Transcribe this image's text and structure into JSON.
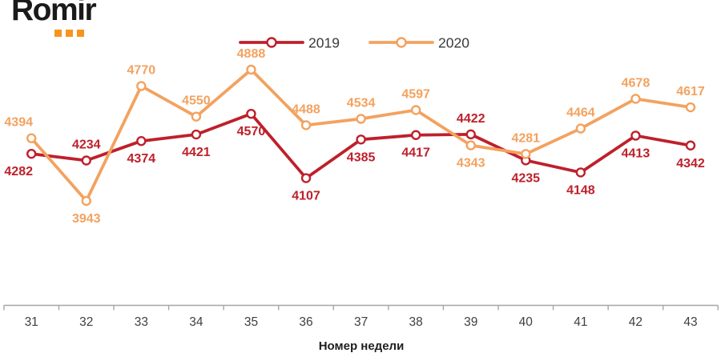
{
  "logo": {
    "text": "Romir"
  },
  "colors": {
    "series_2019": "#BE202B",
    "series_2020": "#F3A25F",
    "logo_dots": "#F7941D",
    "axis": "#A6A6A6",
    "text": "#3F3F3F",
    "legend_text": "#3A3A3A"
  },
  "chart_data": {
    "type": "line",
    "x": [
      31,
      32,
      33,
      34,
      35,
      36,
      37,
      38,
      39,
      40,
      41,
      42,
      43
    ],
    "xlabel": "Номер недели",
    "ylim": [
      3900,
      4950
    ],
    "grid": false,
    "legend_position": "top-center",
    "marker": "open-circle",
    "series": [
      {
        "name": "2019",
        "color": "#BE202B",
        "values": [
          4282,
          4234,
          4374,
          4421,
          4570,
          4107,
          4385,
          4417,
          4422,
          4235,
          4148,
          4413,
          4342
        ],
        "label_side": [
          "below",
          "above",
          "below",
          "below",
          "below",
          "below",
          "below",
          "below",
          "above",
          "below",
          "below",
          "below",
          "below"
        ]
      },
      {
        "name": "2020",
        "color": "#F3A25F",
        "values": [
          4394,
          3943,
          4770,
          4550,
          4888,
          4488,
          4534,
          4597,
          4343,
          4281,
          4464,
          4678,
          4617
        ],
        "label_side": [
          "above",
          "below",
          "above",
          "above",
          "above",
          "above",
          "above",
          "above",
          "below",
          "above",
          "above",
          "above",
          "above"
        ]
      }
    ]
  }
}
